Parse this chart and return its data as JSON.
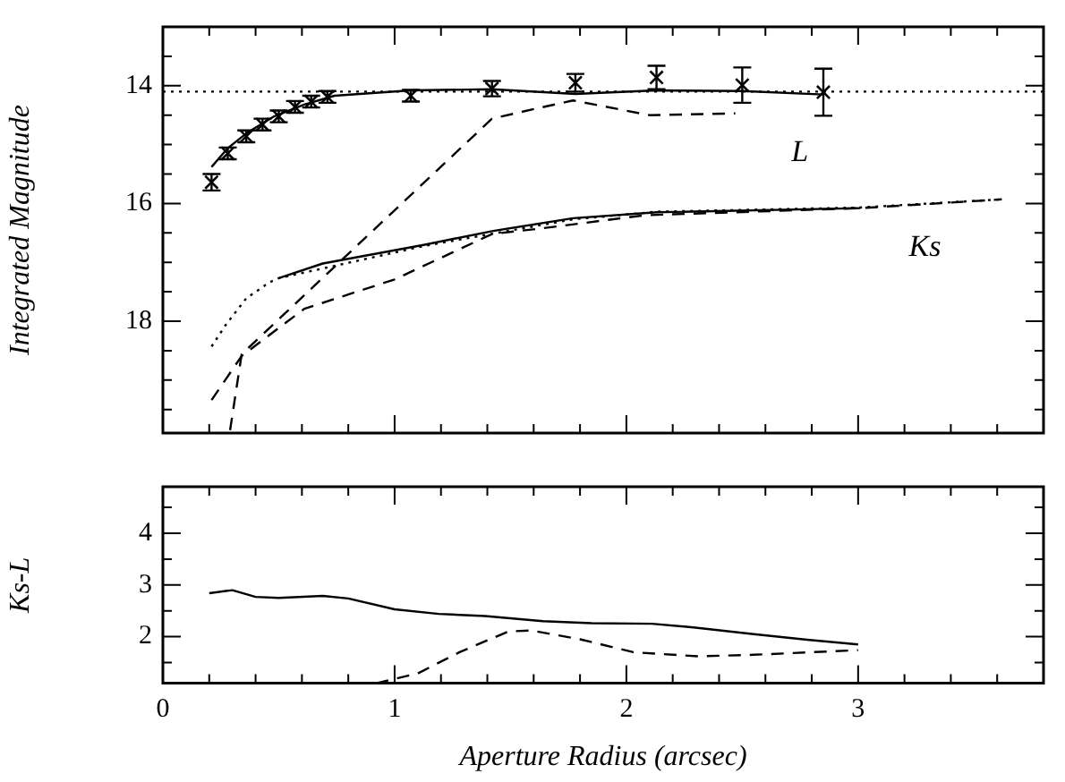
{
  "chart_data": [
    {
      "type": "line",
      "ylabel": "Integrated Magnitude",
      "xlim": [
        0,
        3.8
      ],
      "xticks": [
        0,
        {
          "value": 0.2,
          "label": null
        },
        {
          "value": 0.4,
          "label": null
        },
        {
          "value": 0.6,
          "label": null
        },
        {
          "value": 0.8,
          "label": null
        },
        1,
        {
          "value": 1.2,
          "label": null
        },
        {
          "value": 1.4,
          "label": null
        },
        {
          "value": 1.6,
          "label": null
        },
        {
          "value": 1.8,
          "label": null
        },
        2,
        {
          "value": 2.2,
          "label": null
        },
        {
          "value": 2.4,
          "label": null
        },
        {
          "value": 2.6,
          "label": null
        },
        {
          "value": 2.8,
          "label": null
        },
        3,
        {
          "value": 3.2,
          "label": null
        },
        {
          "value": 3.4,
          "label": null
        },
        {
          "value": 3.6,
          "label": null
        }
      ],
      "ylim": [
        19.9,
        13
      ],
      "yticks": [
        {
          "value": 13.5,
          "label": null
        },
        14,
        {
          "value": 14.5,
          "label": null
        },
        {
          "value": 15,
          "label": null
        },
        {
          "value": 15.5,
          "label": null
        },
        16,
        {
          "value": 16.5,
          "label": null
        },
        {
          "value": 17,
          "label": null
        },
        {
          "value": 17.5,
          "label": null
        },
        18,
        {
          "value": 18.5,
          "label": null
        },
        {
          "value": 19,
          "label": null
        },
        {
          "value": 19.5,
          "label": null
        }
      ],
      "tick_labels": "y",
      "grid": false,
      "legend": false,
      "series": [
        {
          "type": "scatter",
          "marker": "cross",
          "color": "#000000",
          "x": [
            0.21,
            0.28,
            0.36,
            0.43,
            0.5,
            0.57,
            0.64,
            0.71,
            1.07,
            1.42,
            1.78,
            2.13,
            2.5,
            2.85
          ],
          "values": [
            15.64,
            15.15,
            14.86,
            14.66,
            14.52,
            14.36,
            14.27,
            14.19,
            14.17,
            14.05,
            13.95,
            13.86,
            13.99,
            14.11
          ],
          "errors": [
            0.14,
            0.1,
            0.1,
            0.1,
            0.1,
            0.1,
            0.1,
            0.1,
            0.1,
            0.13,
            0.15,
            0.2,
            0.3,
            0.4
          ]
        },
        {
          "type": "line",
          "line_style": "solid",
          "color": "#000000",
          "x": [
            0.21,
            0.28,
            0.36,
            0.48,
            0.61,
            0.74,
            1.07,
            1.42,
            1.78,
            2.13,
            2.5,
            2.85
          ],
          "values": [
            15.38,
            15.06,
            14.81,
            14.52,
            14.32,
            14.17,
            14.08,
            14.06,
            14.14,
            14.08,
            14.09,
            14.15
          ]
        },
        {
          "type": "line",
          "name": "L",
          "line_style": "dashed",
          "color": "#000000",
          "x": [
            0.29,
            0.34,
            1.42,
            1.62,
            1.77,
            2.1,
            2.47
          ],
          "values": [
            19.85,
            18.56,
            14.56,
            14.38,
            14.25,
            14.5,
            14.47
          ]
        },
        {
          "type": "line",
          "name": "Ks",
          "line_style": "solid",
          "color": "#000000",
          "x": [
            0.5,
            0.69,
            1.13,
            1.42,
            1.77,
            2.13,
            3.01
          ],
          "values": [
            17.27,
            17.02,
            16.7,
            16.47,
            16.25,
            16.15,
            16.08
          ]
        },
        {
          "type": "line",
          "line_style": "dotted",
          "color": "#000000",
          "x": [
            0.21,
            0.27,
            0.36,
            0.46,
            0.5,
            1.13,
            1.77,
            2.13,
            3.0,
            3.62
          ],
          "values": [
            18.43,
            18.07,
            17.61,
            17.34,
            17.27,
            16.72,
            16.27,
            16.14,
            16.07,
            15.93
          ]
        },
        {
          "type": "line",
          "line_style": "dashed",
          "color": "#000000",
          "x": [
            0.21,
            0.34,
            0.61,
            1.0,
            1.42,
            1.62,
            2.08,
            3.01,
            3.62
          ],
          "values": [
            19.34,
            18.59,
            17.79,
            17.29,
            16.52,
            16.43,
            16.2,
            16.08,
            15.93
          ]
        }
      ],
      "ref_lines": [
        {
          "axis": "y",
          "value": 14.1,
          "line_style": "dotted",
          "color": "#000000"
        }
      ]
    },
    {
      "type": "line",
      "xlabel": "Aperture Radius (arcsec)",
      "ylabel": "Ks-L",
      "xlim": [
        0,
        3.8
      ],
      "xticks": [
        0,
        {
          "value": 0.2,
          "label": null
        },
        {
          "value": 0.4,
          "label": null
        },
        {
          "value": 0.6,
          "label": null
        },
        {
          "value": 0.8,
          "label": null
        },
        1,
        {
          "value": 1.2,
          "label": null
        },
        {
          "value": 1.4,
          "label": null
        },
        {
          "value": 1.6,
          "label": null
        },
        {
          "value": 1.8,
          "label": null
        },
        2,
        {
          "value": 2.2,
          "label": null
        },
        {
          "value": 2.4,
          "label": null
        },
        {
          "value": 2.6,
          "label": null
        },
        {
          "value": 2.8,
          "label": null
        },
        3,
        {
          "value": 3.2,
          "label": null
        },
        {
          "value": 3.4,
          "label": null
        },
        {
          "value": 3.6,
          "label": null
        }
      ],
      "ylim": [
        1.1,
        4.9
      ],
      "yticks": [
        {
          "value": 1.5,
          "label": null
        },
        2,
        {
          "value": 2.5,
          "label": null
        },
        3,
        {
          "value": 3.5,
          "label": null
        },
        4,
        {
          "value": 4.5,
          "label": null
        }
      ],
      "grid": false,
      "legend": false,
      "series": [
        {
          "type": "line",
          "line_style": "solid",
          "color": "#000000",
          "x": [
            0.2,
            0.3,
            0.4,
            0.5,
            0.69,
            0.8,
            1.0,
            1.19,
            1.39,
            1.64,
            1.85,
            2.11,
            2.29,
            2.55,
            2.78,
            3.0
          ],
          "values": [
            2.84,
            2.9,
            2.77,
            2.75,
            2.79,
            2.74,
            2.53,
            2.44,
            2.4,
            2.3,
            2.26,
            2.25,
            2.18,
            2.05,
            1.94,
            1.85
          ]
        },
        {
          "type": "line",
          "line_style": "dashed",
          "color": "#000000",
          "x": [
            0.92,
            1.1,
            1.28,
            1.49,
            1.59,
            1.8,
            2.03,
            2.31,
            2.55,
            3.0
          ],
          "values": [
            1.1,
            1.29,
            1.7,
            2.1,
            2.12,
            1.95,
            1.7,
            1.62,
            1.65,
            1.74
          ]
        }
      ]
    }
  ]
}
